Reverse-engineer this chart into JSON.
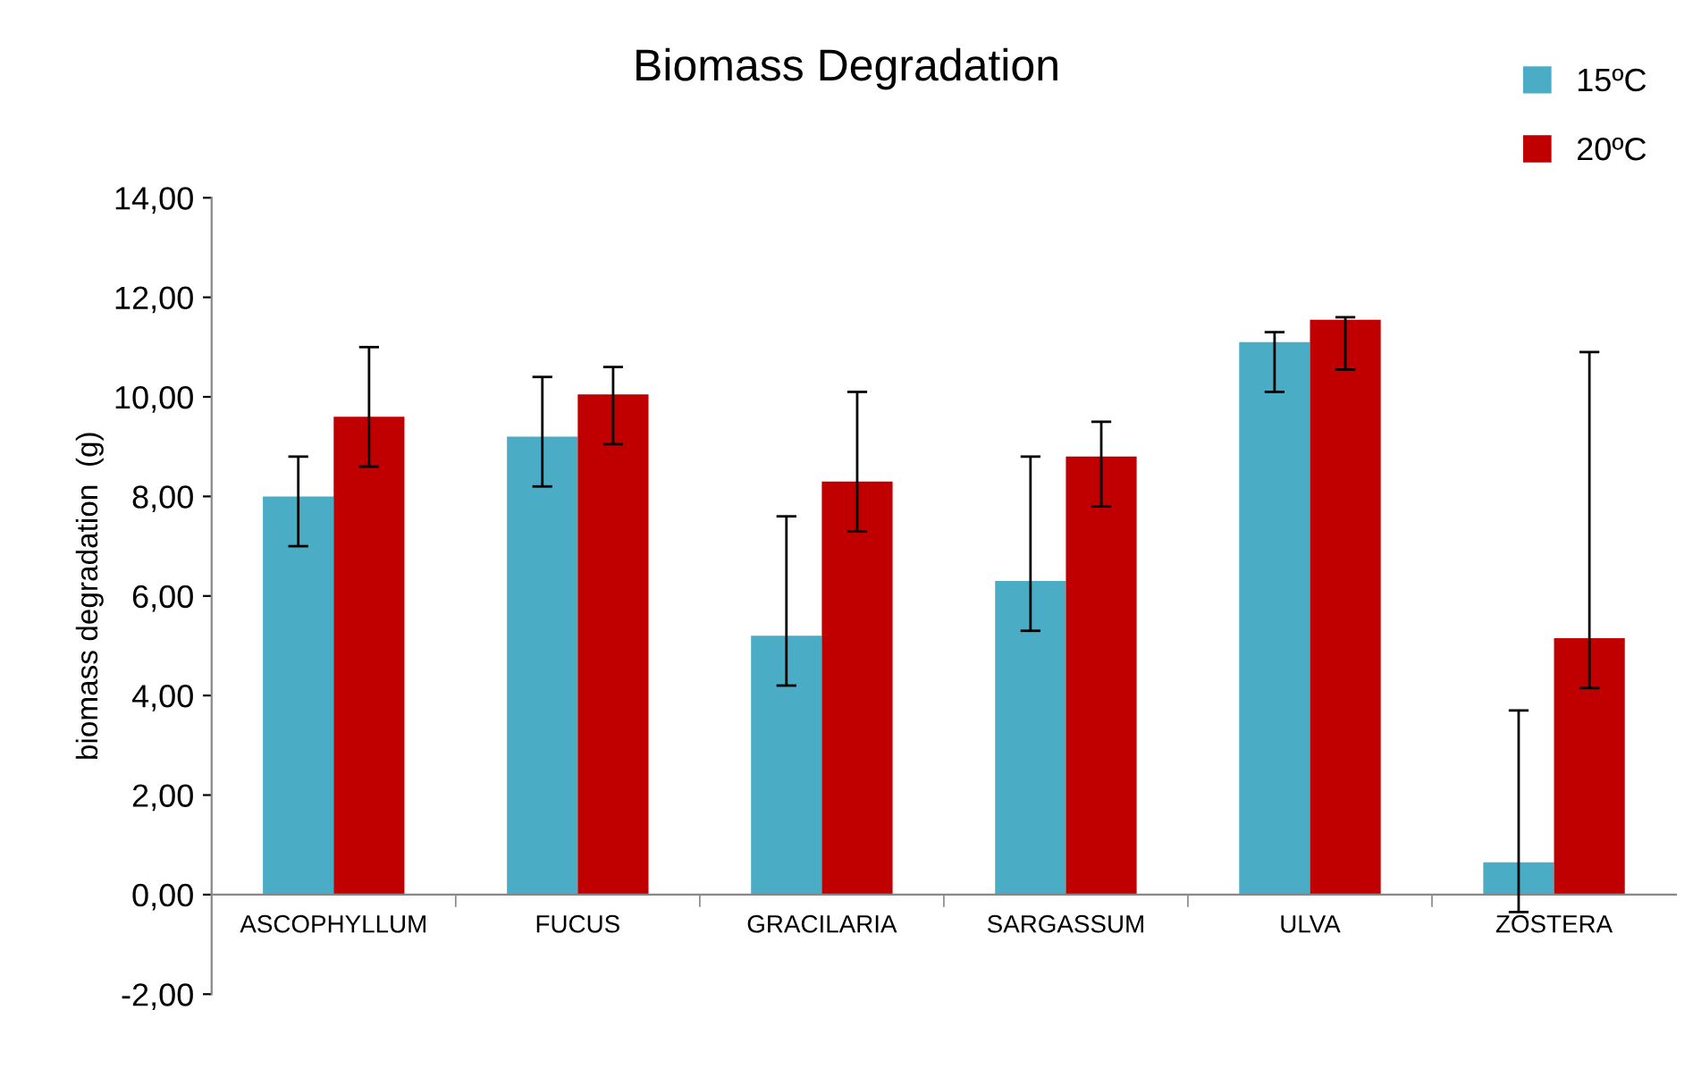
{
  "chart_data": {
    "type": "bar",
    "title": "Biomass Degradation",
    "ylabel": "biomass degradation  (g)",
    "categories": [
      "ASCOPHYLLUM",
      "FUCUS",
      "GRACILARIA",
      "SARGASSUM",
      "ULVA",
      "ZOSTERA"
    ],
    "series": [
      {
        "name": "15ºC",
        "color": "#4bacc6",
        "values": [
          8.0,
          9.2,
          5.2,
          6.3,
          11.1,
          0.65
        ],
        "errors": [
          [
            7.0,
            8.8
          ],
          [
            8.2,
            10.4
          ],
          [
            4.2,
            7.6
          ],
          [
            5.3,
            8.8
          ],
          [
            10.1,
            11.3
          ],
          [
            -0.35,
            3.7
          ]
        ]
      },
      {
        "name": "20ºC",
        "color": "#c00000",
        "values": [
          9.6,
          10.05,
          8.3,
          8.8,
          11.55,
          5.15
        ],
        "errors": [
          [
            8.6,
            11.0
          ],
          [
            9.05,
            10.6
          ],
          [
            7.3,
            10.1
          ],
          [
            7.8,
            9.5
          ],
          [
            10.55,
            11.6
          ],
          [
            4.15,
            10.9
          ]
        ]
      }
    ],
    "ylim": [
      -2,
      14
    ],
    "yticks": [
      {
        "value": -2,
        "label": "-2,00"
      },
      {
        "value": 0,
        "label": "0,00"
      },
      {
        "value": 2,
        "label": "2,00"
      },
      {
        "value": 4,
        "label": "4,00"
      },
      {
        "value": 6,
        "label": "6,00"
      },
      {
        "value": 8,
        "label": "8,00"
      },
      {
        "value": 10,
        "label": "10,00"
      },
      {
        "value": 12,
        "label": "12,00"
      },
      {
        "value": 14,
        "label": "14,00"
      }
    ],
    "grid": false,
    "legend": "top right"
  }
}
